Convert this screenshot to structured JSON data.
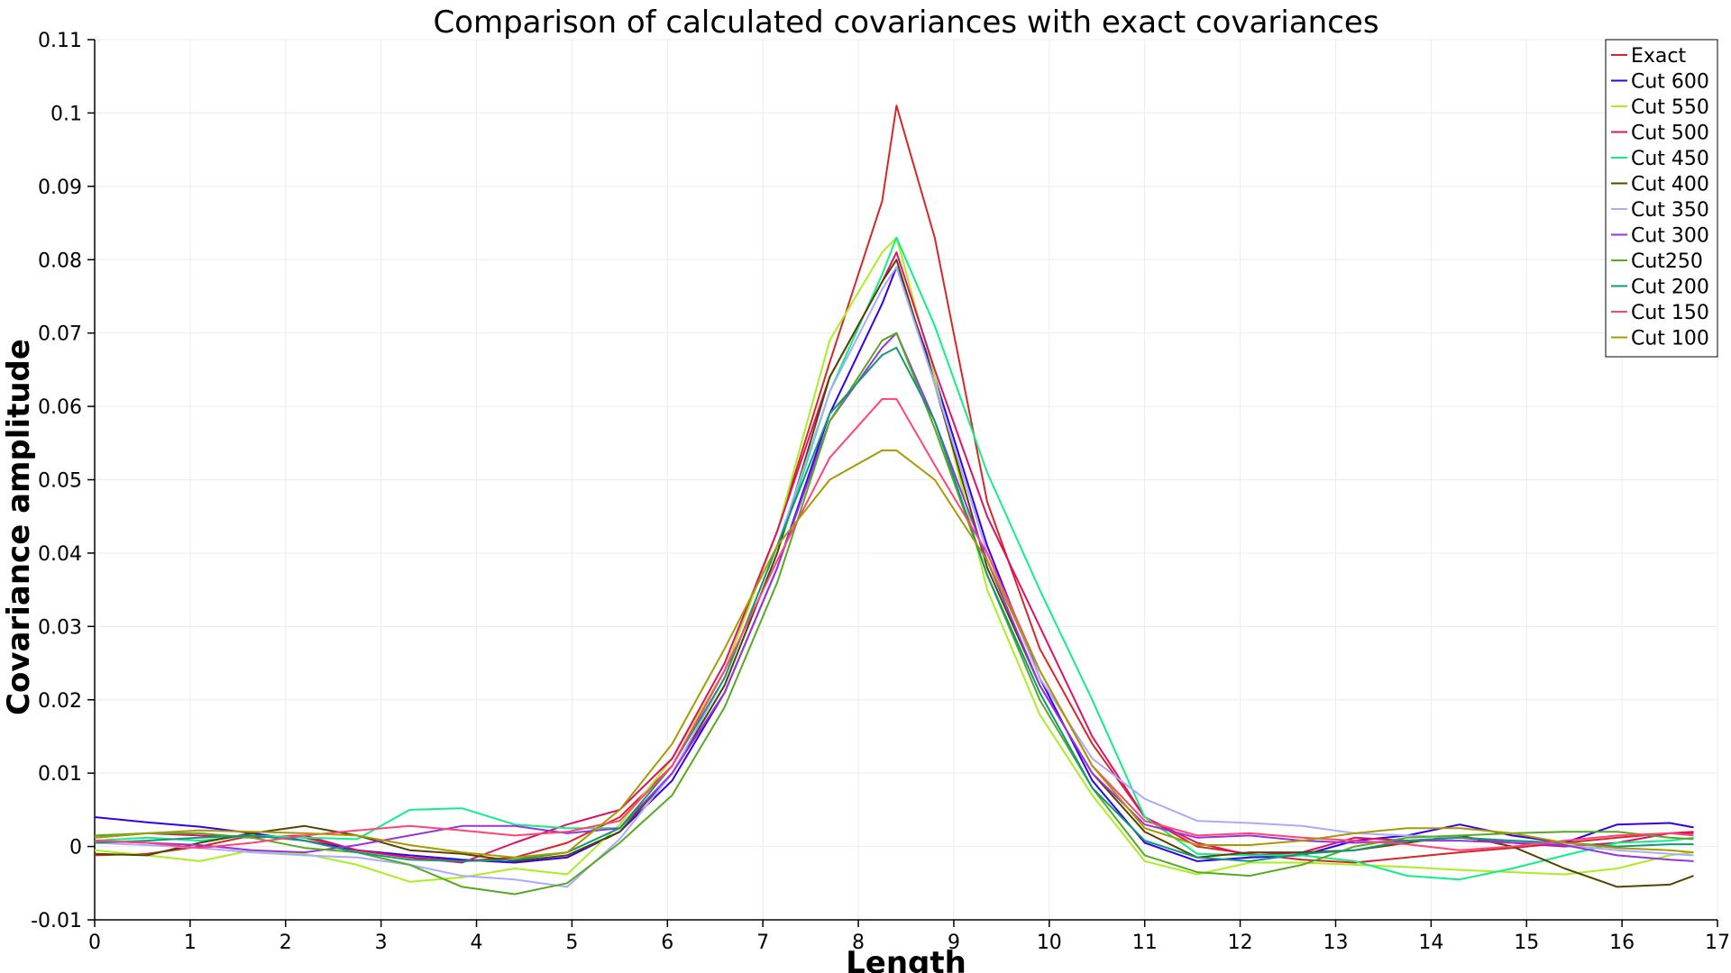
{
  "chart_data": {
    "type": "line",
    "title": "Comparison of calculated covariances with exact covariances",
    "xlabel": "Length",
    "ylabel": "Covariance amplitude",
    "xlim": [
      0,
      17
    ],
    "ylim": [
      -0.01,
      0.11
    ],
    "xticks": [
      "0",
      "1",
      "2",
      "3",
      "4",
      "5",
      "6",
      "7",
      "8",
      "9",
      "10",
      "11",
      "12",
      "13",
      "14",
      "15",
      "16",
      "17"
    ],
    "yticks": [
      "-0.01",
      "0",
      "0.01",
      "0.02",
      "0.03",
      "0.04",
      "0.05",
      "0.06",
      "0.07",
      "0.08",
      "0.09",
      "0.1",
      "0.11"
    ],
    "grid": true,
    "legend_position": "top-right",
    "x": [
      0,
      0.55,
      1.1,
      1.65,
      2.2,
      2.75,
      3.3,
      3.85,
      4.4,
      4.95,
      5.5,
      6.05,
      6.6,
      7.15,
      7.7,
      8.25,
      8.4,
      8.8,
      9.35,
      9.9,
      10.45,
      11,
      11.55,
      12.1,
      12.65,
      13.2,
      13.75,
      14.3,
      14.85,
      15.4,
      15.95,
      16.5,
      16.75
    ],
    "series": [
      {
        "name": "Exact",
        "color": "#d62728",
        "values": [
          -0.0012,
          -0.001,
          0,
          0.0015,
          0.0012,
          -0.0005,
          -0.0015,
          -0.002,
          -0.0015,
          0.0005,
          0.004,
          0.011,
          0.024,
          0.043,
          0.066,
          0.088,
          0.101,
          0.083,
          0.047,
          0.027,
          0.014,
          0.004,
          0,
          -0.001,
          -0.0018,
          -0.0022,
          -0.0015,
          -0.0008,
          -0.0002,
          0.0005,
          0.0012,
          0.0018,
          0.002
        ]
      },
      {
        "name": "Cut 600",
        "color": "#3300ee",
        "values": [
          0.004,
          0.0033,
          0.0027,
          0.0018,
          0.0008,
          -0.0005,
          -0.0012,
          -0.0018,
          -0.0022,
          -0.0015,
          0.002,
          0.009,
          0.021,
          0.038,
          0.059,
          0.074,
          0.079,
          0.064,
          0.041,
          0.023,
          0.009,
          0.0005,
          -0.002,
          -0.0015,
          -0.0012,
          0.0008,
          0.0015,
          0.003,
          0.0015,
          0.0005,
          0.003,
          0.0032,
          0.0026
        ]
      },
      {
        "name": "Cut 550",
        "color": "#aaee22",
        "values": [
          -0.0005,
          -0.0012,
          -0.002,
          -0.0005,
          -0.001,
          -0.0025,
          -0.0048,
          -0.0042,
          -0.003,
          -0.0038,
          0.003,
          0.012,
          0.024,
          0.043,
          0.069,
          0.081,
          0.083,
          0.064,
          0.035,
          0.018,
          0.007,
          -0.002,
          -0.0038,
          -0.0022,
          -0.0022,
          -0.0025,
          -0.0028,
          -0.0032,
          -0.0035,
          -0.0038,
          -0.003,
          -0.0012,
          -0.0008
        ]
      },
      {
        "name": "Cut 500",
        "color": "#dd1166",
        "values": [
          0.0012,
          0.0018,
          0.0015,
          0.0012,
          0.0015,
          -0.0005,
          -0.0015,
          -0.0022,
          0.0005,
          0.003,
          0.005,
          0.012,
          0.025,
          0.043,
          0.064,
          0.077,
          0.081,
          0.065,
          0.045,
          0.03,
          0.015,
          0.004,
          0.0005,
          -0.0012,
          -0.0008,
          0.0012,
          0.0008,
          0.0012,
          0.0005,
          0,
          0.0005,
          0.0018,
          0.0018
        ]
      },
      {
        "name": "Cut 450",
        "color": "#11ee88",
        "values": [
          0.0008,
          0.0012,
          0.0008,
          0.0015,
          0.0012,
          0.001,
          0.005,
          0.0052,
          0.003,
          0.0025,
          0.0025,
          0.01,
          0.022,
          0.04,
          0.062,
          0.078,
          0.083,
          0.071,
          0.051,
          0.035,
          0.02,
          0.004,
          -0.001,
          -0.0012,
          -0.0012,
          -0.002,
          -0.004,
          -0.0045,
          -0.003,
          -0.0012,
          0.0005,
          0.0008,
          0.0012
        ]
      },
      {
        "name": "Cut 400",
        "color": "#554400",
        "values": [
          -0.001,
          -0.0012,
          0.0005,
          0.0018,
          0.0028,
          0.0015,
          -0.0005,
          -0.001,
          -0.002,
          -0.0012,
          0.002,
          0.01,
          0.022,
          0.04,
          0.064,
          0.077,
          0.08,
          0.063,
          0.038,
          0.022,
          0.01,
          0.002,
          -0.0015,
          -0.0008,
          -0.0008,
          -0.0005,
          0.0005,
          0.0015,
          0,
          -0.003,
          -0.0055,
          -0.0052,
          -0.004
        ]
      },
      {
        "name": "Cut 350",
        "color": "#aaaaff",
        "values": [
          0.0005,
          0.0002,
          -0.0002,
          -0.0008,
          -0.0012,
          -0.0015,
          -0.0025,
          -0.004,
          -0.0045,
          -0.0055,
          0.001,
          0.01,
          0.023,
          0.041,
          0.062,
          0.076,
          0.079,
          0.063,
          0.04,
          0.023,
          0.012,
          0.0065,
          0.0035,
          0.0032,
          0.0028,
          0.0018,
          0.0015,
          0.0012,
          0.0008,
          0.0002,
          -0.0005,
          -0.001,
          -0.0012
        ]
      },
      {
        "name": "Cut 300",
        "color": "#9933dd",
        "values": [
          0.0008,
          0.0005,
          0.0002,
          -0.0005,
          -0.0008,
          0.0002,
          0.0015,
          0.0028,
          0.0028,
          0.0018,
          0.0025,
          0.01,
          0.021,
          0.038,
          0.058,
          0.068,
          0.07,
          0.058,
          0.039,
          0.022,
          0.01,
          0.003,
          0.0012,
          0.0015,
          0.0008,
          0.0005,
          0.0008,
          0.0008,
          0.0005,
          0.0002,
          -0.0012,
          -0.0018,
          -0.002
        ]
      },
      {
        "name": "Cut250",
        "color": "#55aa22",
        "values": [
          0.0015,
          0.0018,
          0.0018,
          0.0012,
          -0.0002,
          -0.0008,
          -0.0025,
          -0.0055,
          -0.0065,
          -0.005,
          0.0005,
          0.007,
          0.019,
          0.036,
          0.058,
          0.069,
          0.07,
          0.057,
          0.037,
          0.02,
          0.008,
          -0.0012,
          -0.0035,
          -0.004,
          -0.0025,
          0,
          0.0012,
          0.0015,
          0.0018,
          0.002,
          0.002,
          0.0012,
          0.001
        ]
      },
      {
        "name": "Cut 200",
        "color": "#119977",
        "values": [
          0.0005,
          0.0008,
          0.0012,
          0.0015,
          0.0008,
          -0.0008,
          -0.0018,
          -0.002,
          -0.0018,
          -0.0008,
          0.0025,
          0.011,
          0.023,
          0.041,
          0.059,
          0.067,
          0.068,
          0.058,
          0.037,
          0.021,
          0.008,
          0.0008,
          -0.0015,
          -0.002,
          -0.001,
          -0.0005,
          0.0008,
          0.0012,
          0.0008,
          0.0005,
          0,
          0.0003,
          0.0003
        ]
      },
      {
        "name": "Cut 150",
        "color": "#ff4477",
        "values": [
          0.0008,
          0.0005,
          -0.0002,
          0.0005,
          0.0015,
          0.0022,
          0.0028,
          0.0022,
          0.0015,
          0.002,
          0.0035,
          0.011,
          0.024,
          0.039,
          0.053,
          0.061,
          0.061,
          0.052,
          0.04,
          0.024,
          0.011,
          0.0035,
          0.0015,
          0.0018,
          0.0012,
          0.0008,
          0.0003,
          -0.0005,
          0,
          0.0008,
          0.0015,
          0.0018,
          0.0015
        ]
      },
      {
        "name": "Cut 100",
        "color": "#aa9900",
        "values": [
          0.0012,
          0.0018,
          0.0022,
          0.002,
          0.0018,
          0.0015,
          0.0002,
          -0.0008,
          -0.0015,
          -0.0008,
          0.005,
          0.014,
          0.027,
          0.041,
          0.05,
          0.054,
          0.054,
          0.05,
          0.039,
          0.024,
          0.011,
          0.0025,
          0.0002,
          0.0002,
          0.0008,
          0.0018,
          0.0025,
          0.0025,
          0.0018,
          0.0005,
          -0.0002,
          -0.0005,
          -0.0008
        ]
      }
    ]
  }
}
